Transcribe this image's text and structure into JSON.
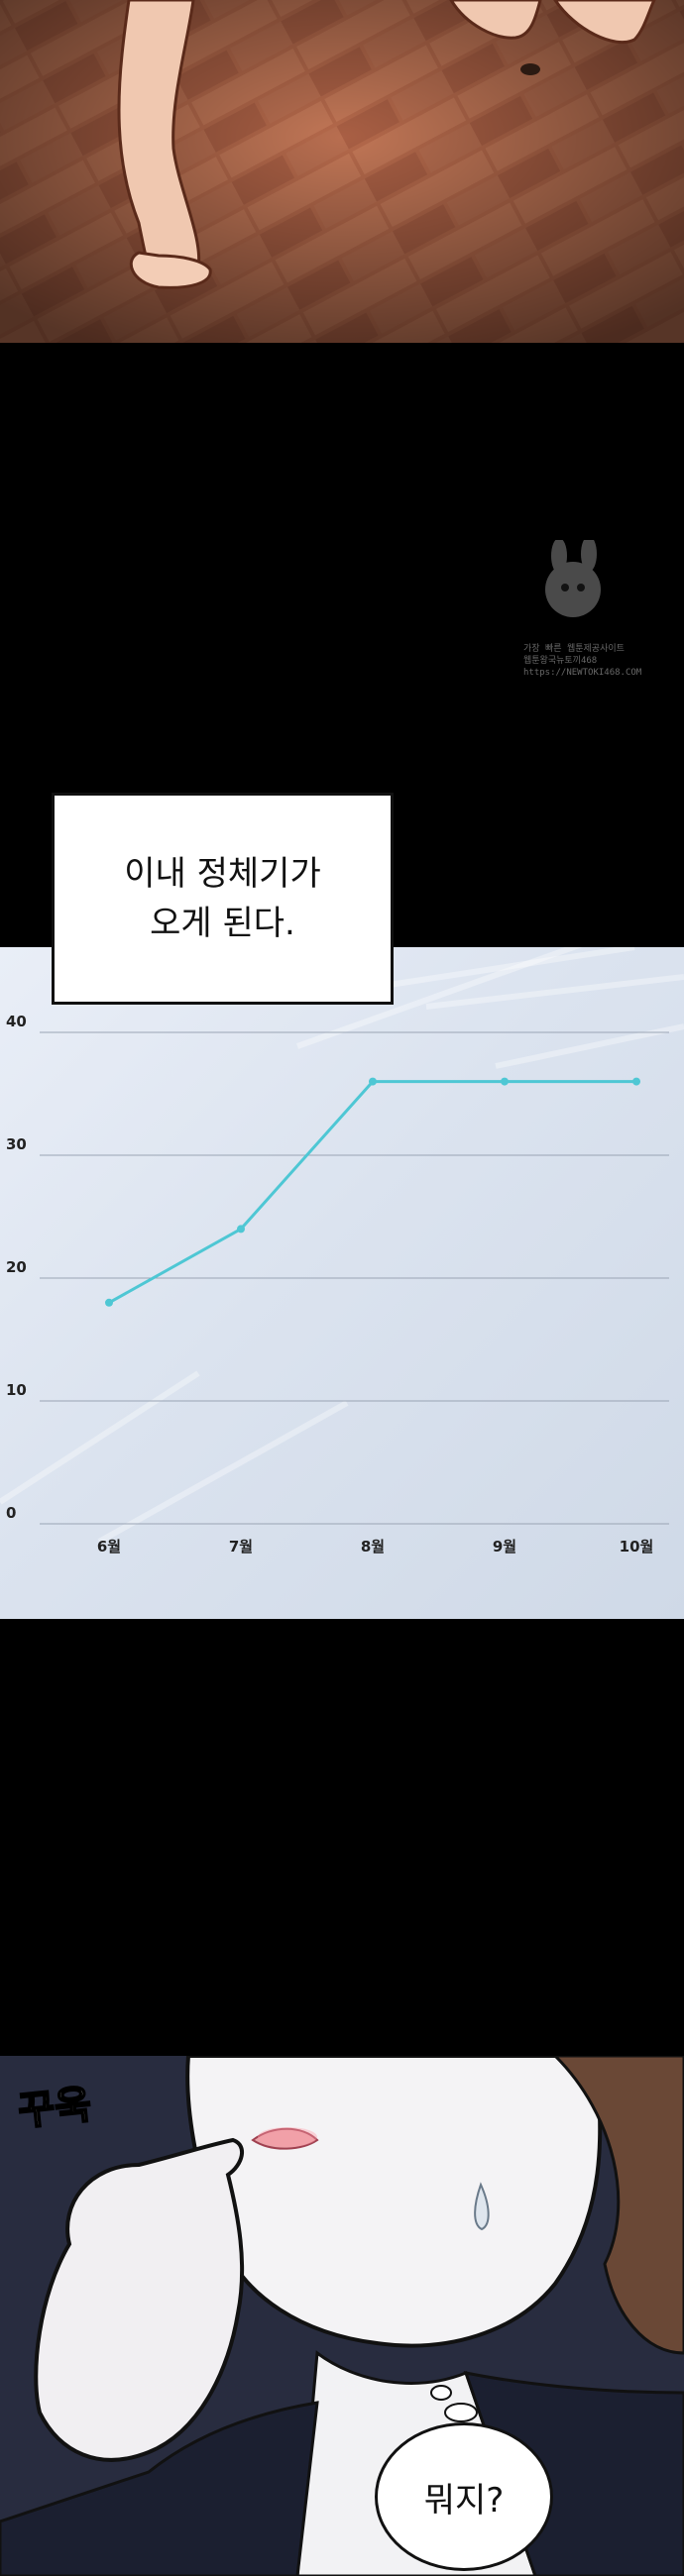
{
  "caption": {
    "line1": "이내 정체기가",
    "line2": "오게 된다."
  },
  "chart_data": {
    "type": "line",
    "categories": [
      "6월",
      "7월",
      "8월",
      "9월",
      "10월"
    ],
    "values": [
      18,
      24,
      36,
      36,
      36
    ],
    "ylim": [
      0,
      40
    ],
    "yticks": [
      0,
      10,
      20,
      30,
      40
    ],
    "line_color": "#4ec7d4",
    "grid": true
  },
  "sfx": {
    "text": "꾸욱"
  },
  "speech": {
    "text": "뭐지?"
  },
  "watermark": {
    "line1": "가장 빠른 웹툰제공사이트",
    "line2": "웹툰왕국뉴토끼468",
    "line3": "https://NEWTOKI468.COM"
  }
}
